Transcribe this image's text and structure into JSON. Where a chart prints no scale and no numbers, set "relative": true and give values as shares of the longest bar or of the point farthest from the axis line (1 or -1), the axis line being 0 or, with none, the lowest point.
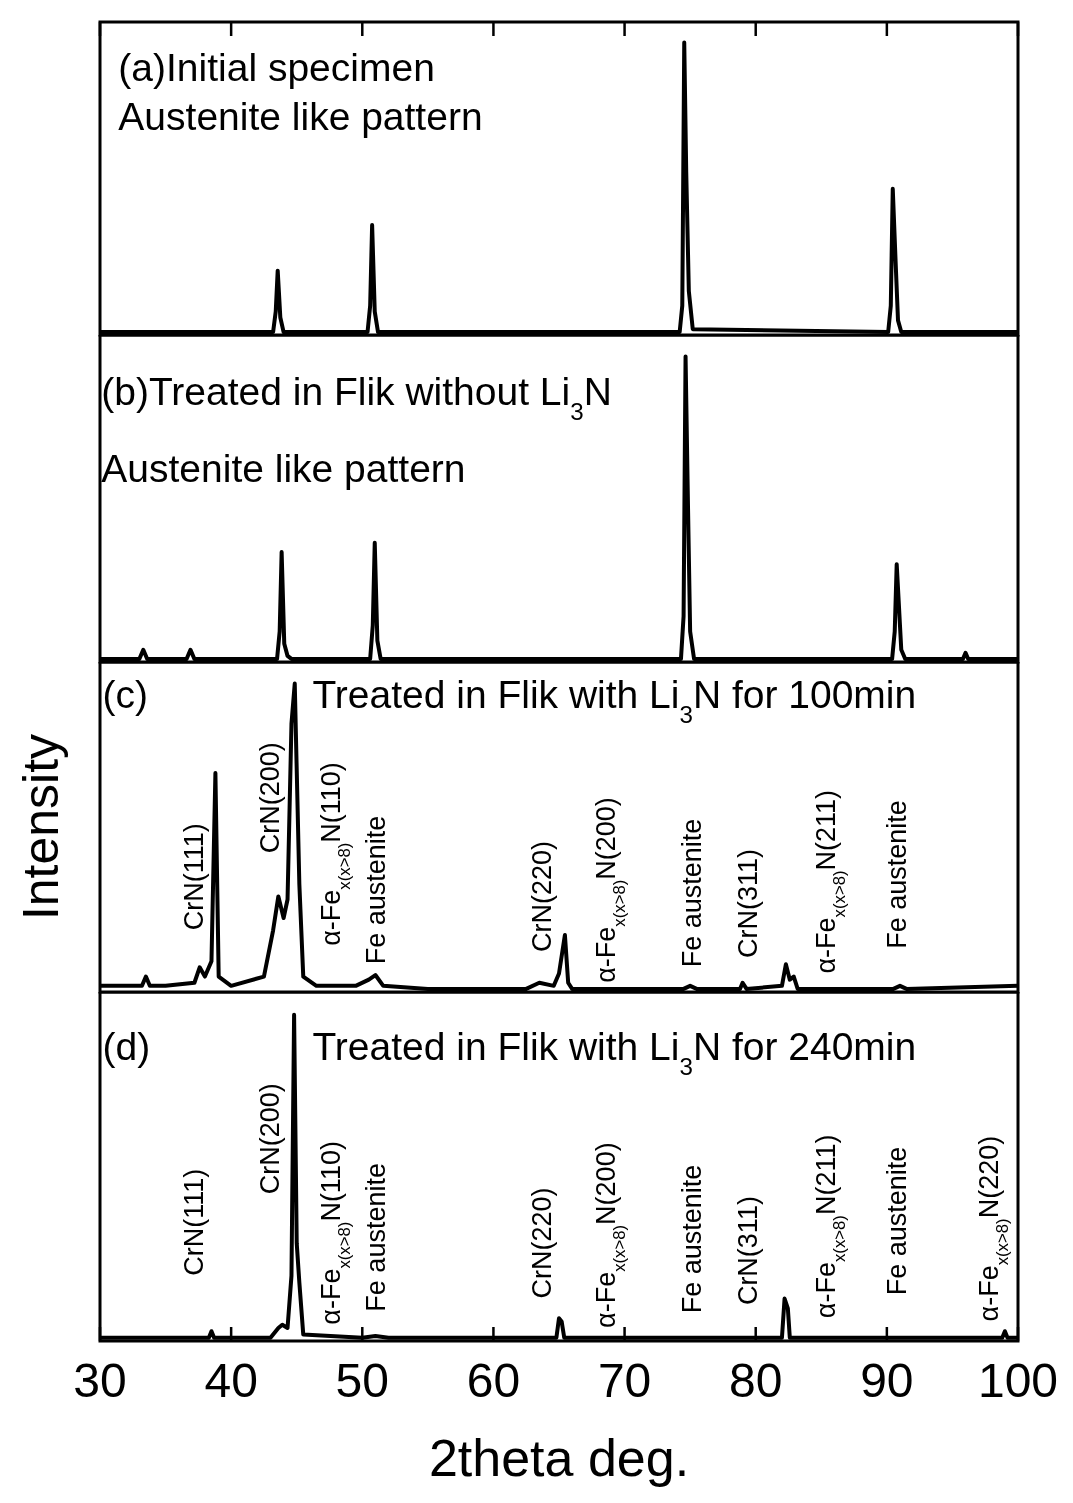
{
  "chart_data": [
    {
      "type": "line",
      "color": "#000000",
      "xlim": [
        30,
        100
      ],
      "xticks": [
        30,
        40,
        50,
        60,
        70,
        80,
        90,
        100
      ],
      "relative": true,
      "tick_labels": false,
      "marker": "none",
      "x": [
        30,
        43.2,
        43.4,
        43.55,
        43.75,
        44.0,
        50.4,
        50.6,
        50.75,
        50.95,
        51.2,
        74.2,
        74.4,
        74.55,
        74.7,
        74.9,
        75.2,
        90.1,
        90.3,
        90.45,
        90.65,
        90.85,
        91.1,
        100
      ],
      "values": [
        0.01,
        0.01,
        0.08,
        0.22,
        0.06,
        0.01,
        0.01,
        0.1,
        0.376,
        0.08,
        0.01,
        0.01,
        0.1,
        1.0,
        0.56,
        0.15,
        0.02,
        0.01,
        0.1,
        0.5,
        0.27,
        0.05,
        0.01,
        0.01
      ],
      "annotations": [
        "(a)Initial specimen",
        "Austenite like pattern"
      ]
    },
    {
      "type": "line",
      "color": "#000000",
      "xlim": [
        30,
        100
      ],
      "xticks": [
        30,
        40,
        50,
        60,
        70,
        80,
        90,
        100
      ],
      "relative": true,
      "tick_labels": false,
      "marker": "none",
      "x": [
        30,
        33.0,
        33.3,
        33.6,
        36.6,
        36.9,
        37.2,
        43.5,
        43.7,
        43.85,
        44.05,
        44.3,
        44.6,
        50.6,
        50.8,
        50.95,
        51.15,
        51.4,
        74.3,
        74.5,
        74.65,
        74.8,
        75.0,
        75.3,
        90.4,
        90.6,
        90.75,
        90.9,
        91.1,
        91.4,
        95.8,
        96.0,
        96.2,
        100
      ],
      "values": [
        0.01,
        0.01,
        0.04,
        0.01,
        0.01,
        0.04,
        0.01,
        0.01,
        0.1,
        0.36,
        0.06,
        0.02,
        0.01,
        0.01,
        0.12,
        0.39,
        0.07,
        0.01,
        0.01,
        0.15,
        1.0,
        0.6,
        0.1,
        0.01,
        0.01,
        0.1,
        0.32,
        0.2,
        0.04,
        0.01,
        0.01,
        0.03,
        0.01,
        0.01
      ],
      "annotations": [
        "(b)Treated in Flik without Li$_{3}$N",
        "Austenite like pattern"
      ]
    },
    {
      "type": "line",
      "color": "#000000",
      "xlim": [
        30,
        100
      ],
      "xticks": [
        30,
        40,
        50,
        60,
        70,
        80,
        90,
        100
      ],
      "relative": true,
      "tick_labels": false,
      "marker": "none",
      "ylabel": "Intensity",
      "x": [
        30,
        33.2,
        33.5,
        33.8,
        35,
        37.2,
        37.6,
        38.0,
        38.5,
        38.8,
        39.05,
        40,
        42.5,
        43.2,
        43.6,
        44.0,
        44.3,
        44.6,
        44.85,
        45.2,
        45.5,
        46.5,
        49.5,
        50.5,
        51.0,
        51.6,
        55,
        62.5,
        63.5,
        64.6,
        65.0,
        65.45,
        65.7,
        66,
        74.5,
        75,
        75.5,
        78.8,
        79.0,
        79.3,
        82.0,
        82.3,
        82.6,
        82.9,
        83.2,
        90.5,
        91,
        91.5,
        100
      ],
      "values": [
        0.02,
        0.02,
        0.05,
        0.02,
        0.02,
        0.03,
        0.08,
        0.05,
        0.1,
        0.71,
        0.05,
        0.02,
        0.05,
        0.2,
        0.31,
        0.24,
        0.3,
        0.87,
        1.0,
        0.35,
        0.05,
        0.02,
        0.02,
        0.04,
        0.055,
        0.02,
        0.01,
        0.01,
        0.03,
        0.02,
        0.06,
        0.185,
        0.03,
        0.01,
        0.01,
        0.02,
        0.01,
        0.01,
        0.03,
        0.01,
        0.02,
        0.09,
        0.04,
        0.05,
        0.01,
        0.01,
        0.02,
        0.01,
        0.02
      ],
      "annotations": [
        "(c)",
        "Treated in Flik with Li$_{3}$N for 100min",
        "CrN(111)",
        "CrN(200)",
        "α-Fe$_{x(x>8)}$N(110)",
        "Fe austenite",
        "CrN(220)",
        "α-Fe$_{x(x>8)}$N(200)",
        "Fe austenite",
        "CrN(311)",
        "α-Fe$_{x(x>8)}$N(211)",
        "Fe austenite"
      ]
    },
    {
      "type": "line",
      "color": "#000000",
      "xlim": [
        30,
        100
      ],
      "xticks": [
        30,
        40,
        50,
        60,
        70,
        80,
        90,
        100
      ],
      "relative": true,
      "tick_labels": "x",
      "marker": "none",
      "xlabel": "2theta deg.",
      "x": [
        30,
        37.5,
        38.3,
        38.5,
        38.7,
        43,
        43.6,
        43.9,
        44.3,
        44.6,
        44.8,
        45.0,
        45.2,
        45.5,
        50,
        51,
        52,
        64.8,
        65.0,
        65.2,
        65.4,
        82.0,
        82.2,
        82.45,
        82.6,
        98.8,
        99.0,
        99.2,
        100
      ],
      "values": [
        0.01,
        0.01,
        0.01,
        0.03,
        0.01,
        0.01,
        0.04,
        0.05,
        0.04,
        0.2,
        1.0,
        0.3,
        0.18,
        0.02,
        0.01,
        0.015,
        0.01,
        0.01,
        0.07,
        0.06,
        0.01,
        0.01,
        0.13,
        0.1,
        0.01,
        0.01,
        0.03,
        0.01,
        0.01
      ],
      "annotations": [
        "(d)",
        "Treated in Flik with Li$_{3}$N for 240min",
        "CrN(111)",
        "CrN(200)",
        "α-Fe$_{x(x>8)}$N(110)",
        "Fe austenite",
        "CrN(220)",
        "α-Fe$_{x(x>8)}$N(200)",
        "Fe austenite",
        "CrN(311)",
        "α-Fe$_{x(x>8)}$N(211)",
        "Fe austenite",
        "α-Fe$_{x(x>8)}$N(220)"
      ]
    }
  ]
}
